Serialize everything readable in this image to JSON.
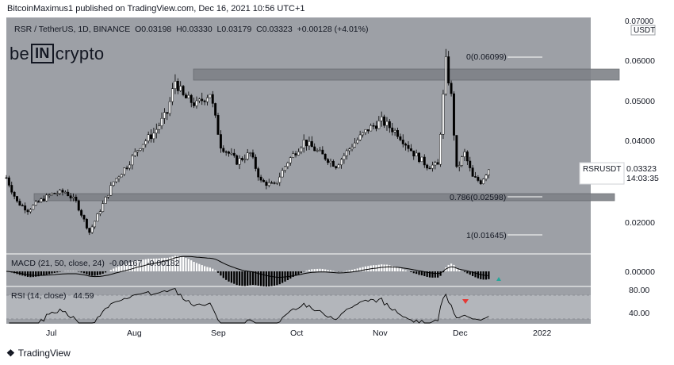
{
  "header": {
    "published": "BitcoinMaximus1 published on TradingView.com, Dec 16, 2021 10:56 UTC+1"
  },
  "legend": {
    "symbol": "RSR / TetherUS, 1D, BINANCE",
    "o_label": "O",
    "o": "0.03198",
    "h_label": "H",
    "h": "0.03330",
    "l_label": "L",
    "l": "0.03179",
    "c_label": "C",
    "c": "0.03323",
    "change": "+0.00128 (+4.01%)"
  },
  "logo": {
    "left": "be",
    "box": "IN",
    "right": "crypto"
  },
  "price_axis": {
    "currency": "USDT",
    "top_tick": "0.07000",
    "ticks": [
      "0.06000",
      "0.05000",
      "0.04000",
      "0.02000"
    ]
  },
  "price_tag": {
    "symbol": "RSRUSDT",
    "price": "0.03323",
    "countdown": "14:03:35"
  },
  "fib_levels": [
    {
      "label": "0(0.06099)",
      "value": 0.06099
    },
    {
      "label": "0.786(0.02598)",
      "value": 0.02598
    },
    {
      "label": "1(0.01645)",
      "value": 0.01645
    }
  ],
  "zones": [
    {
      "name": "resistance",
      "from": 0.0555,
      "to": 0.0585
    },
    {
      "name": "support",
      "from": 0.0255,
      "to": 0.0272
    }
  ],
  "macd": {
    "label": "MACD (21, 50, close, 24)",
    "v1": "-0.00167",
    "v2": "-0.00182",
    "tick": "0.00000"
  },
  "rsi": {
    "label": "RSI (14, close)",
    "value": "44.59",
    "ticks": [
      "80.00",
      "40.00"
    ]
  },
  "x_axis": [
    "Jul",
    "Aug",
    "Sep",
    "Oct",
    "Nov",
    "Dec",
    "2022"
  ],
  "footer": {
    "brand": "TradingView"
  },
  "colors": {
    "bg": "#9da0a6",
    "candle": "#000000",
    "candle_up": "#ffffff",
    "zone": "#7f8288",
    "bearish_marker": "#e53935",
    "bullish_marker": "#26a69a"
  },
  "chart_data": {
    "type": "candlestick",
    "ylim": [
      0.011,
      0.07
    ],
    "close_path": [
      {
        "x": "Jun 19",
        "y": 0.031
      },
      {
        "x": "Jun 23",
        "y": 0.025
      },
      {
        "x": "Jun 27",
        "y": 0.023
      },
      {
        "x": "Jul 1",
        "y": 0.025
      },
      {
        "x": "Jul 6",
        "y": 0.027
      },
      {
        "x": "Jul 11",
        "y": 0.0275
      },
      {
        "x": "Jul 15",
        "y": 0.025
      },
      {
        "x": "Jul 20",
        "y": 0.0175
      },
      {
        "x": "Jul 24",
        "y": 0.023
      },
      {
        "x": "Jul 29",
        "y": 0.03
      },
      {
        "x": "Aug 3",
        "y": 0.034
      },
      {
        "x": "Aug 8",
        "y": 0.039
      },
      {
        "x": "Aug 13",
        "y": 0.042
      },
      {
        "x": "Aug 18",
        "y": 0.047
      },
      {
        "x": "Aug 21",
        "y": 0.055
      },
      {
        "x": "Aug 24",
        "y": 0.051
      },
      {
        "x": "Aug 29",
        "y": 0.049
      },
      {
        "x": "Sep 3",
        "y": 0.052
      },
      {
        "x": "Sep 7",
        "y": 0.039
      },
      {
        "x": "Sep 13",
        "y": 0.035
      },
      {
        "x": "Sep 18",
        "y": 0.037
      },
      {
        "x": "Sep 22",
        "y": 0.03
      },
      {
        "x": "Sep 27",
        "y": 0.029
      },
      {
        "x": "Oct 2",
        "y": 0.035
      },
      {
        "x": "Oct 8",
        "y": 0.04
      },
      {
        "x": "Oct 14",
        "y": 0.037
      },
      {
        "x": "Oct 20",
        "y": 0.034
      },
      {
        "x": "Oct 26",
        "y": 0.039
      },
      {
        "x": "Nov 1",
        "y": 0.043
      },
      {
        "x": "Nov 6",
        "y": 0.045
      },
      {
        "x": "Nov 12",
        "y": 0.042
      },
      {
        "x": "Nov 18",
        "y": 0.037
      },
      {
        "x": "Nov 23",
        "y": 0.034
      },
      {
        "x": "Nov 27",
        "y": 0.034
      },
      {
        "x": "Nov 30",
        "y": 0.0595
      },
      {
        "x": "Dec 2",
        "y": 0.051
      },
      {
        "x": "Dec 4",
        "y": 0.033
      },
      {
        "x": "Dec 7",
        "y": 0.037
      },
      {
        "x": "Dec 10",
        "y": 0.031
      },
      {
        "x": "Dec 13",
        "y": 0.03
      },
      {
        "x": "Dec 16",
        "y": 0.03323
      }
    ]
  }
}
